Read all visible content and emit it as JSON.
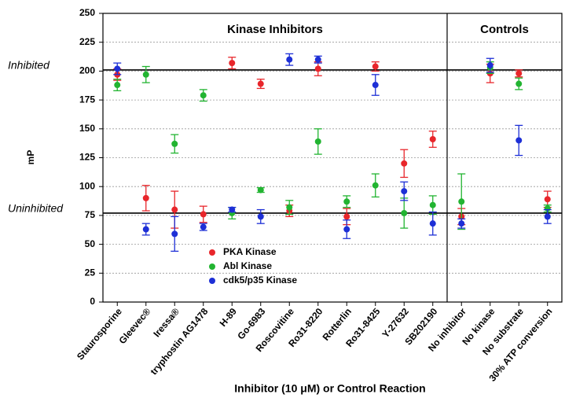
{
  "chart_data": {
    "type": "scatter",
    "y_label": "mP",
    "x_label": "Inhibitor (10 μM) or Control Reaction",
    "sections": [
      {
        "label": "Kinase Inhibitors"
      },
      {
        "label": "Controls"
      }
    ],
    "reference_lines": [
      {
        "value": 201,
        "label": "Inhibited"
      },
      {
        "value": 77,
        "label": "Uninhibited"
      }
    ],
    "categories": [
      "Staurosporine",
      "Gleevec®",
      "Iressa®",
      "tryphostin AG1478",
      "H-89",
      "Go-6983",
      "Roscovitine",
      "Ro31-8220",
      "Rotterlin",
      "Ro31-8425",
      "Y-27632",
      "SB202190",
      "No inhibitor",
      "No kinase",
      "No substrate",
      "30% ATP conversion"
    ],
    "series": [
      {
        "name": "PKA Kinase",
        "color": "#e8262b",
        "values": [
          197,
          90,
          80,
          76,
          207,
          189,
          79,
          202,
          74,
          204,
          120,
          141,
          74,
          198,
          198,
          89
        ],
        "errors": [
          5,
          11,
          16,
          7,
          5,
          4,
          5,
          6,
          7,
          4,
          12,
          7,
          7,
          8,
          3,
          7
        ]
      },
      {
        "name": "Abl Kinase",
        "color": "#22b431",
        "values": [
          188,
          197,
          137,
          179,
          77,
          97,
          82,
          139,
          87,
          101,
          77,
          84,
          87,
          203,
          189,
          81
        ],
        "errors": [
          5,
          7,
          8,
          5,
          5,
          2,
          6,
          11,
          5,
          10,
          13,
          8,
          24,
          5,
          5,
          3
        ]
      },
      {
        "name": "cdk5/p35 Kinase",
        "color": "#1d2fd6",
        "values": [
          202,
          63,
          59,
          65,
          80,
          74,
          210,
          210,
          63,
          188,
          96,
          68,
          68,
          205,
          140,
          74
        ],
        "errors": [
          5,
          5,
          15,
          3,
          2,
          6,
          5,
          3,
          8,
          9,
          8,
          10,
          4,
          6,
          13,
          6
        ]
      }
    ],
    "ylim": [
      0,
      250
    ],
    "yticks": [
      0,
      25,
      50,
      75,
      100,
      125,
      150,
      175,
      200,
      225,
      250
    ],
    "grid": true,
    "legend_position": "lower-center"
  }
}
